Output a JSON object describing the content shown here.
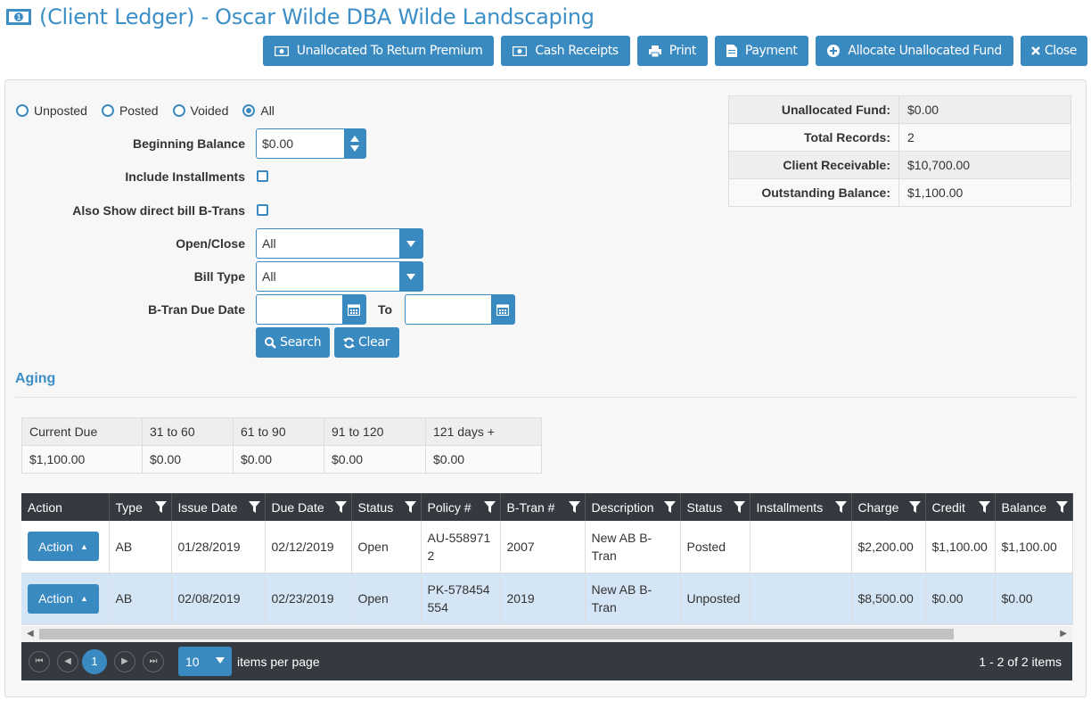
{
  "title": "(Client Ledger) - Oscar Wilde DBA Wilde Landscaping",
  "toolbar": {
    "unallocated_return": "Unallocated To Return Premium",
    "cash_receipts": "Cash Receipts",
    "print": "Print",
    "payment": "Payment",
    "allocate": "Allocate Unallocated Fund",
    "close": "Close"
  },
  "filters": {
    "radios": [
      "Unposted",
      "Posted",
      "Voided",
      "All"
    ],
    "selected": "All",
    "beginning_balance_label": "Beginning Balance",
    "beginning_balance": "$0.00",
    "include_installments_label": "Include Installments",
    "direct_bill_label": "Also Show direct bill B-Trans",
    "open_close_label": "Open/Close",
    "open_close_value": "All",
    "bill_type_label": "Bill Type",
    "bill_type_value": "All",
    "due_date_label": "B-Tran Due Date",
    "to_label": "To",
    "search": "Search",
    "clear": "Clear"
  },
  "summary": [
    {
      "label": "Unallocated Fund:",
      "value": "$0.00"
    },
    {
      "label": "Total Records:",
      "value": "2"
    },
    {
      "label": "Client Receivable:",
      "value": "$10,700.00"
    },
    {
      "label": "Outstanding Balance:",
      "value": "$1,100.00"
    }
  ],
  "aging": {
    "title": "Aging",
    "headers": [
      "Current Due",
      "31 to 60",
      "61 to 90",
      "91 to 120",
      "121 days +"
    ],
    "values": [
      "$1,100.00",
      "$0.00",
      "$0.00",
      "$0.00",
      "$0.00"
    ]
  },
  "grid": {
    "columns": [
      "Action",
      "Type",
      "Issue Date",
      "Due Date",
      "Status",
      "Policy #",
      "B-Tran #",
      "Description",
      "Status",
      "Installments",
      "Charge",
      "Credit",
      "Balance"
    ],
    "action_label": "Action",
    "rows": [
      {
        "type": "AB",
        "issue": "01/28/2019",
        "due": "02/12/2019",
        "status": "Open",
        "policy": "AU-5589712",
        "btran": "2007",
        "desc": "New AB B-Tran",
        "status2": "Posted",
        "inst": "",
        "charge": "$2,200.00",
        "credit": "$1,100.00",
        "balance": "$1,100.00"
      },
      {
        "type": "AB",
        "issue": "02/08/2019",
        "due": "02/23/2019",
        "status": "Open",
        "policy": "PK-578454554",
        "btran": "2019",
        "desc": "New AB B-Tran",
        "status2": "Unposted",
        "inst": "",
        "charge": "$8,500.00",
        "credit": "$0.00",
        "balance": "$0.00"
      }
    ]
  },
  "pager": {
    "current_page": "1",
    "page_size": "10",
    "items_per_page": "items per page",
    "info": "1 - 2 of 2 items"
  }
}
